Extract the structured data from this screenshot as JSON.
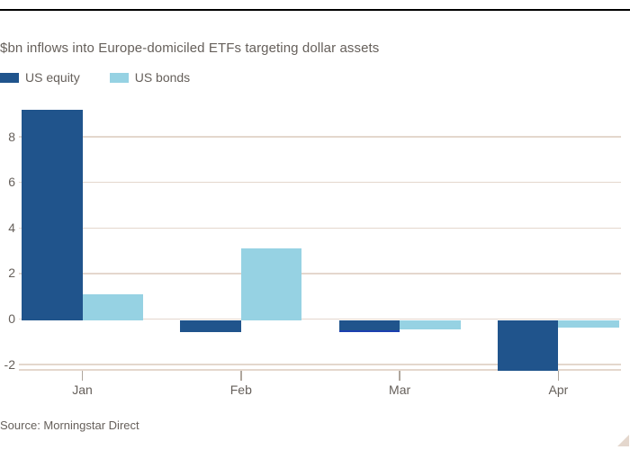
{
  "chart_data": {
    "type": "bar",
    "title": "$bn inflows into Europe-domiciled ETFs targeting dollar assets",
    "source": "Source: Morningstar Direct",
    "categories": [
      "Jan",
      "Feb",
      "Mar",
      "Apr"
    ],
    "series": [
      {
        "name": "US equity",
        "color": "#20548C",
        "values": [
          9.2,
          -0.5,
          -0.5,
          -2.2
        ]
      },
      {
        "name": "US bonds",
        "color": "#96D2E3",
        "values": [
          1.1,
          3.1,
          -0.4,
          -0.3
        ]
      }
    ],
    "yticks": [
      8,
      6,
      4,
      2,
      0,
      -2
    ],
    "ylim": [
      -2.2,
      9.2
    ],
    "grid": "horizontal",
    "legend_position": "top-left",
    "annotation": {
      "series_index": 0,
      "point_index": 2,
      "type": "bottom-edge-stroke",
      "color": "#1C3FAF"
    }
  },
  "colors": {
    "background": "#FFFFFF",
    "text": "#66605B",
    "gridline": "#E4D7CD",
    "axis_line": "#E4D7CD",
    "tick": "#AFA69D",
    "top_rule": "#000000",
    "corner_triangle": "#E4D7CD"
  }
}
